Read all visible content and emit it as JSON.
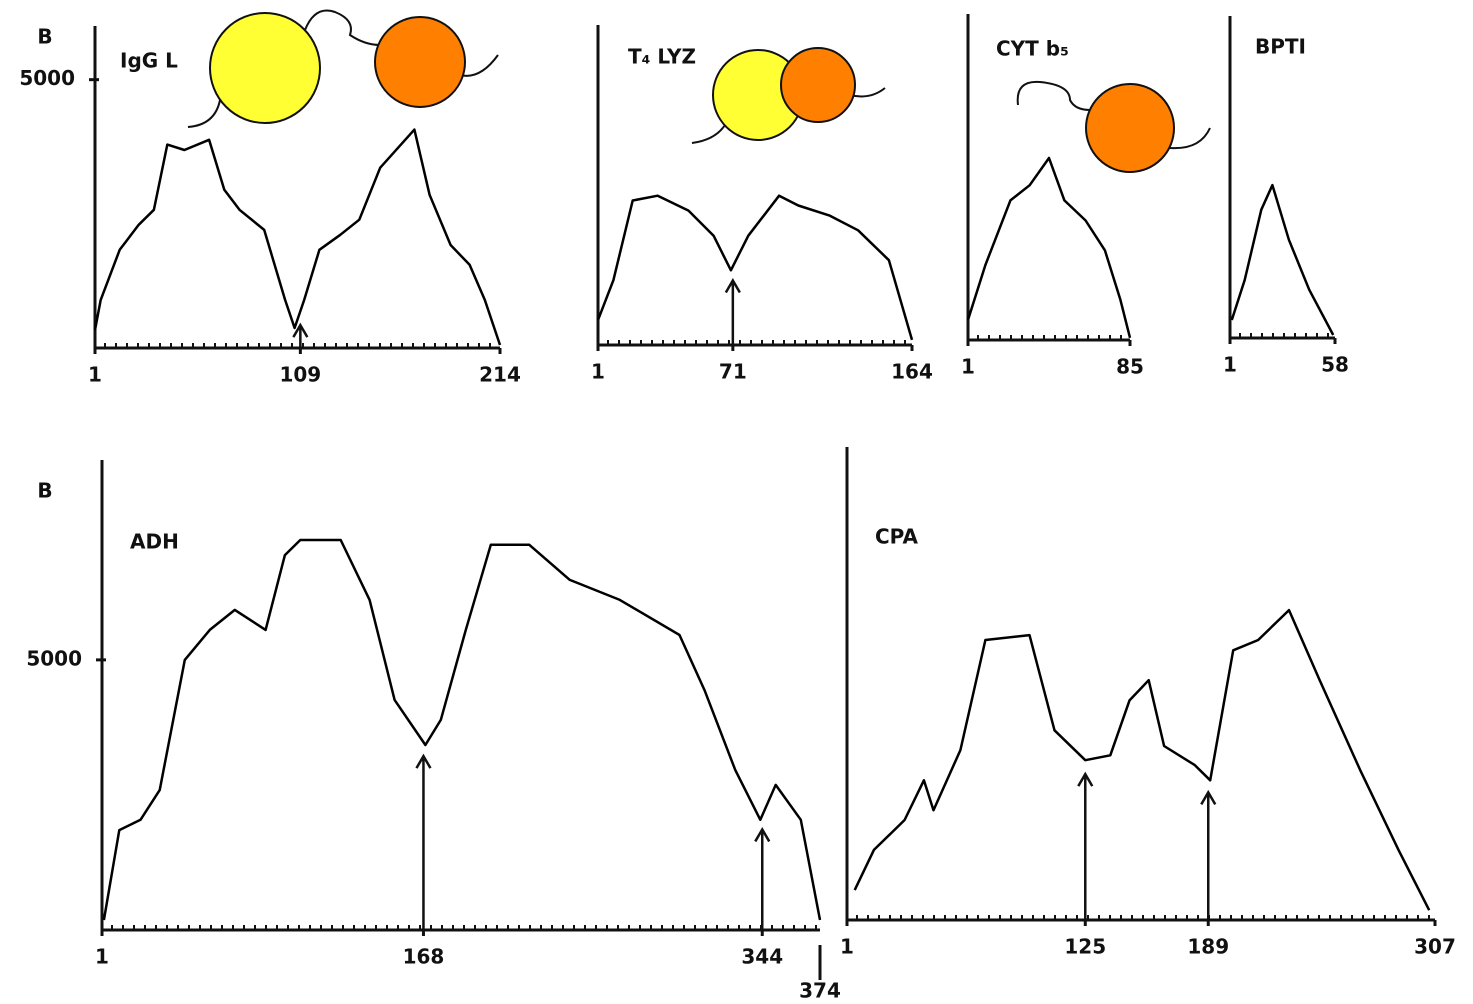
{
  "chart_data": [
    {
      "type": "line",
      "title": "IgG L",
      "ylabel": "B",
      "color": "#000000",
      "x": [
        1,
        4,
        14,
        24,
        32,
        39,
        48,
        61,
        69,
        77,
        90,
        101,
        106,
        111,
        119,
        130,
        140,
        151,
        169,
        177,
        188,
        198,
        206,
        214
      ],
      "values": [
        336,
        896,
        1830,
        2295,
        2575,
        3790,
        3690,
        3880,
        2950,
        2575,
        2200,
        896,
        373,
        896,
        1830,
        2110,
        2390,
        3360,
        4070,
        2855,
        1920,
        1550,
        896,
        56
      ],
      "xlim": [
        1,
        214
      ],
      "xticks": [
        1,
        109,
        214
      ],
      "ylim": [
        0,
        6000
      ],
      "yticks": [
        5000
      ],
      "arrows": [
        109
      ]
    },
    {
      "type": "line",
      "title": "T₄ LYZ",
      "color": "#000000",
      "x": [
        1,
        9,
        19,
        32,
        48,
        61,
        70,
        79,
        95,
        105,
        121,
        136,
        152,
        164
      ],
      "values": [
        466,
        1215,
        2710,
        2800,
        2520,
        2050,
        1400,
        2050,
        2800,
        2615,
        2430,
        2150,
        1590,
        95
      ],
      "xlim": [
        1,
        164
      ],
      "xticks": [
        1,
        71,
        164
      ],
      "ylim": [
        0,
        6000
      ],
      "arrows": [
        71
      ]
    },
    {
      "type": "line",
      "title": "CYT b₅",
      "color": "#000000",
      "x": [
        1,
        10,
        23,
        33,
        43,
        51,
        62,
        72,
        80,
        85
      ],
      "values": [
        370,
        1380,
        2570,
        2850,
        3350,
        2570,
        2200,
        1650,
        740,
        40
      ],
      "xlim": [
        1,
        85
      ],
      "xticks": [
        1,
        85
      ],
      "ylim": [
        0,
        6000
      ]
    },
    {
      "type": "line",
      "title": "BPTI",
      "color": "#000000",
      "x": [
        2,
        9,
        18,
        24,
        33,
        44,
        57
      ],
      "values": [
        335,
        1080,
        2390,
        2850,
        1830,
        900,
        56
      ],
      "xlim": [
        1,
        58
      ],
      "xticks": [
        1,
        58
      ],
      "ylim": [
        0,
        6000
      ]
    },
    {
      "type": "line",
      "title": "ADH",
      "ylabel": "B",
      "color": "#000000",
      "x": [
        2,
        10,
        21,
        31,
        44,
        57,
        70,
        86,
        96,
        104,
        125,
        140,
        153,
        169,
        177,
        190,
        203,
        223,
        244,
        270,
        301,
        314,
        330,
        343,
        351,
        364,
        374
      ],
      "values": [
        185,
        1850,
        2040,
        2590,
        5000,
        5555,
        5925,
        5555,
        6940,
        7220,
        7220,
        6110,
        4260,
        3425,
        3890,
        5555,
        7130,
        7130,
        6480,
        6110,
        5460,
        4440,
        2960,
        2040,
        2685,
        2040,
        185
      ],
      "xlim": [
        1,
        374
      ],
      "xticks": [
        1,
        168,
        344,
        374
      ],
      "ylim": [
        0,
        8700
      ],
      "yticks": [
        5000
      ],
      "arrows": [
        168,
        344
      ]
    },
    {
      "type": "line",
      "title": "CPA",
      "color": "#000000",
      "x": [
        5,
        15,
        31,
        41,
        46,
        60,
        73,
        96,
        109,
        125,
        138,
        148,
        158,
        166,
        182,
        190,
        202,
        215,
        231,
        247,
        268,
        288,
        304
      ],
      "values": [
        550,
        1290,
        1840,
        2570,
        2020,
        3125,
        5150,
        5240,
        3490,
        2940,
        3030,
        4040,
        4410,
        3200,
        2850,
        2570,
        4960,
        5150,
        5700,
        4410,
        2760,
        1290,
        180
      ],
      "xlim": [
        1,
        307
      ],
      "xticks": [
        1,
        125,
        189,
        307
      ],
      "ylim": [
        0,
        8700
      ],
      "arrows": [
        125,
        189
      ]
    }
  ]
}
